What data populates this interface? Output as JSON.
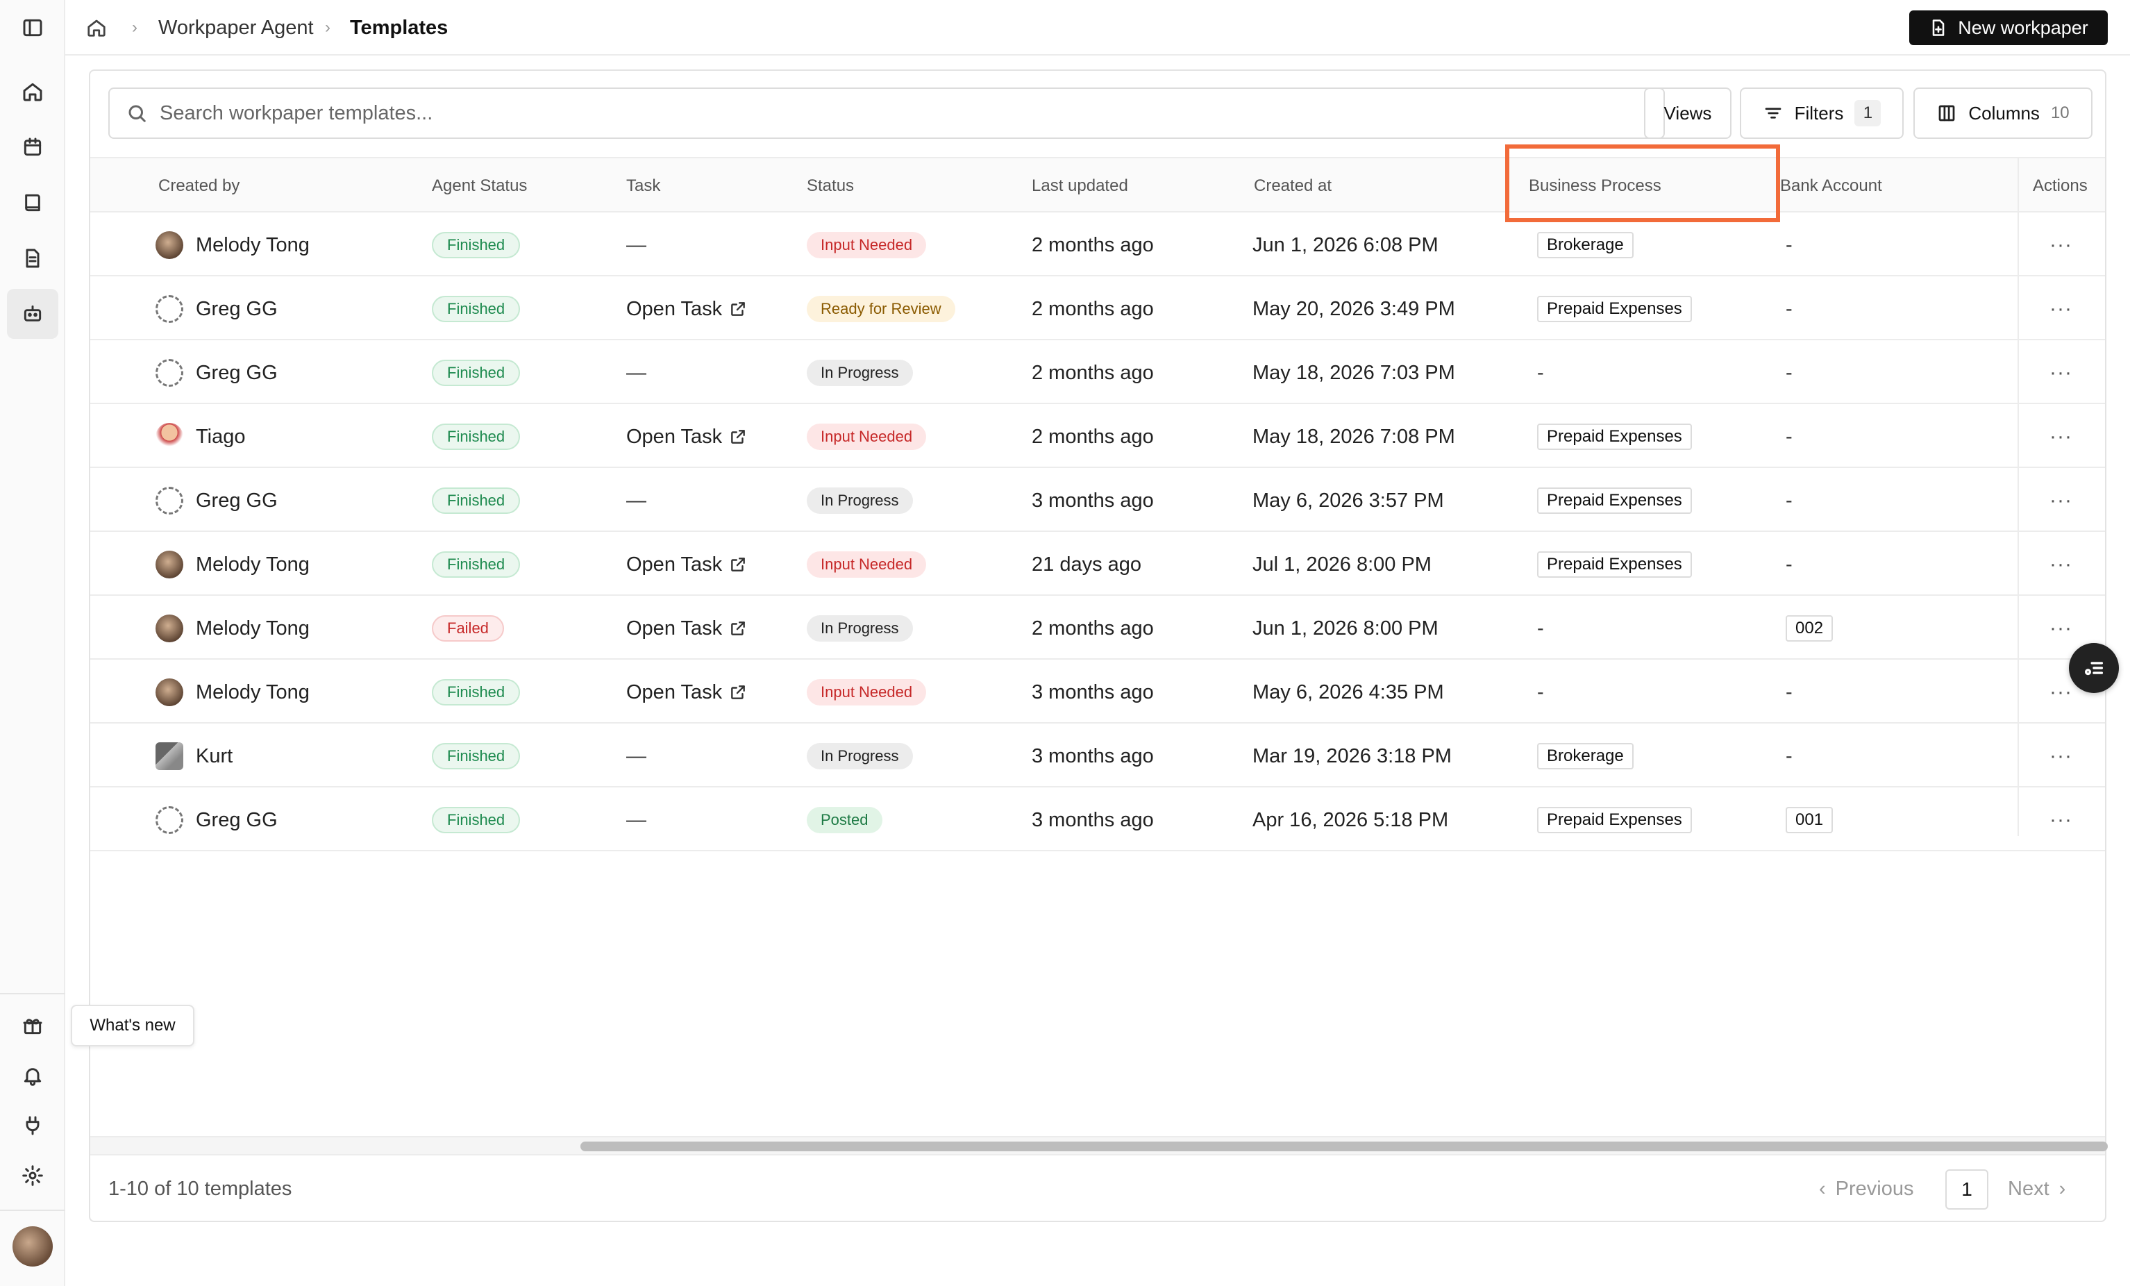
{
  "breadcrumb": {
    "parent": "Workpaper Agent",
    "current": "Templates"
  },
  "header": {
    "new_button": "New workpaper"
  },
  "toolbar": {
    "search_placeholder": "Search workpaper templates...",
    "views": "Views",
    "filters": "Filters",
    "filters_count": "1",
    "columns": "Columns",
    "columns_count": "10"
  },
  "table": {
    "columns": [
      "Created by",
      "Agent Status",
      "Task",
      "Status",
      "Last updated",
      "Created at",
      "Business Process",
      "Bank Account",
      "Actions"
    ],
    "rows": [
      {
        "created_by": "Melody Tong",
        "avatar": "melody",
        "agent_status": "Finished",
        "task": "—",
        "status": "Input Needed",
        "last_updated": "2 months ago",
        "created_at": "Jun 1, 2026 6:08 PM",
        "business_process": "Brokerage",
        "bank_account": "-",
        "actions": "···"
      },
      {
        "created_by": "Greg GG",
        "avatar": "greg",
        "agent_status": "Finished",
        "task": "Open Task",
        "status": "Ready for Review",
        "last_updated": "2 months ago",
        "created_at": "May 20, 2026 3:49 PM",
        "business_process": "Prepaid Expenses",
        "bank_account": "-",
        "actions": "···"
      },
      {
        "created_by": "Greg GG",
        "avatar": "greg",
        "agent_status": "Finished",
        "task": "—",
        "status": "In Progress",
        "last_updated": "2 months ago",
        "created_at": "May 18, 2026 7:03 PM",
        "business_process": "-",
        "bank_account": "-",
        "actions": "···"
      },
      {
        "created_by": "Tiago",
        "avatar": "tiago",
        "agent_status": "Finished",
        "task": "Open Task",
        "status": "Input Needed",
        "last_updated": "2 months ago",
        "created_at": "May 18, 2026 7:08 PM",
        "business_process": "Prepaid Expenses",
        "bank_account": "-",
        "actions": "···"
      },
      {
        "created_by": "Greg GG",
        "avatar": "greg",
        "agent_status": "Finished",
        "task": "—",
        "status": "In Progress",
        "last_updated": "3 months ago",
        "created_at": "May 6, 2026 3:57 PM",
        "business_process": "Prepaid Expenses",
        "bank_account": "-",
        "actions": "···"
      },
      {
        "created_by": "Melody Tong",
        "avatar": "melody",
        "agent_status": "Finished",
        "task": "Open Task",
        "status": "Input Needed",
        "last_updated": "21 days ago",
        "created_at": "Jul 1, 2026 8:00 PM",
        "business_process": "Prepaid Expenses",
        "bank_account": "-",
        "actions": "···"
      },
      {
        "created_by": "Melody Tong",
        "avatar": "melody",
        "agent_status": "Failed",
        "task": "Open Task",
        "status": "In Progress",
        "last_updated": "2 months ago",
        "created_at": "Jun 1, 2026 8:00 PM",
        "business_process": "-",
        "bank_account": "002",
        "actions": "···"
      },
      {
        "created_by": "Melody Tong",
        "avatar": "melody",
        "agent_status": "Finished",
        "task": "Open Task",
        "status": "Input Needed",
        "last_updated": "3 months ago",
        "created_at": "May 6, 2026 4:35 PM",
        "business_process": "-",
        "bank_account": "-",
        "actions": "···"
      },
      {
        "created_by": "Kurt",
        "avatar": "kurt",
        "agent_status": "Finished",
        "task": "—",
        "status": "In Progress",
        "last_updated": "3 months ago",
        "created_at": "Mar 19, 2026 3:18 PM",
        "business_process": "Brokerage",
        "bank_account": "-",
        "actions": "···"
      },
      {
        "created_by": "Greg GG",
        "avatar": "greg",
        "agent_status": "Finished",
        "task": "—",
        "status": "Posted",
        "last_updated": "3 months ago",
        "created_at": "Apr 16, 2026 5:18 PM",
        "business_process": "Prepaid Expenses",
        "bank_account": "001",
        "actions": "···"
      }
    ]
  },
  "footer": {
    "summary": "1-10 of 10 templates",
    "previous": "Previous",
    "page": "1",
    "next": "Next"
  },
  "tooltip": {
    "whats_new": "What's new"
  },
  "colors": {
    "highlight": "#f26b3a",
    "primary_button": "#111111"
  }
}
